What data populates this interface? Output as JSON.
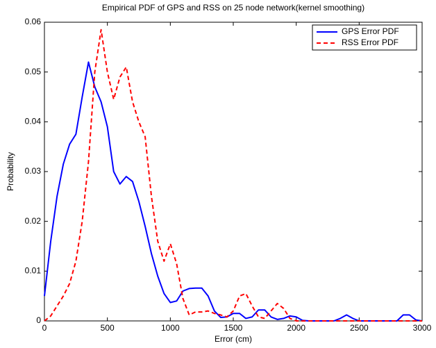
{
  "chart_data": {
    "type": "line",
    "title": "Empirical PDF of GPS and RSS on 25 node network(kernel smoothing)",
    "x_label": "Error (cm)",
    "y_label": "Probability",
    "x": [
      0,
      50,
      100,
      150,
      200,
      250,
      300,
      350,
      400,
      450,
      500,
      550,
      600,
      650,
      700,
      750,
      800,
      850,
      900,
      950,
      1000,
      1050,
      1100,
      1150,
      1200,
      1250,
      1300,
      1350,
      1400,
      1450,
      1500,
      1550,
      1600,
      1650,
      1700,
      1750,
      1800,
      1850,
      1900,
      1950,
      2000,
      2050,
      2100,
      2150,
      2200,
      2250,
      2300,
      2350,
      2400,
      2450,
      2500,
      2550,
      2600,
      2650,
      2700,
      2750,
      2800,
      2850,
      2900,
      2950,
      3000
    ],
    "series": [
      {
        "name": "GPS Error PDF",
        "color": "#0000ff",
        "dash": "solid",
        "values": [
          0.005,
          0.016,
          0.025,
          0.0315,
          0.0355,
          0.0375,
          0.045,
          0.052,
          0.047,
          0.044,
          0.039,
          0.03,
          0.0275,
          0.029,
          0.028,
          0.024,
          0.019,
          0.0135,
          0.009,
          0.0055,
          0.0037,
          0.004,
          0.006,
          0.0065,
          0.0066,
          0.0066,
          0.005,
          0.002,
          0.0007,
          0.0008,
          0.0015,
          0.0015,
          0.0005,
          0.0008,
          0.0022,
          0.0022,
          0.0008,
          0.0003,
          0.0005,
          0.001,
          0.0008,
          0.0001,
          0,
          0,
          0,
          0,
          0,
          0.0005,
          0.0012,
          0.0005,
          0,
          0,
          0,
          0,
          0,
          0,
          0,
          0.0012,
          0.0012,
          0.0002,
          0
        ]
      },
      {
        "name": "RSS Error PDF",
        "color": "#ff0000",
        "dash": "dashed",
        "values": [
          0,
          0.001,
          0.003,
          0.005,
          0.0075,
          0.012,
          0.02,
          0.032,
          0.05,
          0.0585,
          0.05,
          0.0445,
          0.049,
          0.051,
          0.044,
          0.04,
          0.037,
          0.025,
          0.016,
          0.012,
          0.0155,
          0.0115,
          0.0045,
          0.0012,
          0.0018,
          0.0018,
          0.002,
          0.0015,
          0.0012,
          0.0008,
          0.002,
          0.005,
          0.0055,
          0.003,
          0.0008,
          0.0005,
          0.002,
          0.0035,
          0.0025,
          0.0005,
          0,
          0,
          0,
          0,
          0,
          0,
          0,
          0,
          0,
          0,
          0,
          0,
          0,
          0,
          0,
          0,
          0,
          0,
          0,
          0,
          0
        ]
      }
    ],
    "xlim": [
      0,
      3000
    ],
    "ylim": [
      0,
      0.06
    ],
    "xticks": [
      0,
      500,
      1000,
      1500,
      2000,
      2500,
      3000
    ],
    "yticks": [
      0,
      0.01,
      0.02,
      0.03,
      0.04,
      0.05,
      0.06
    ],
    "legend": "upper right"
  }
}
